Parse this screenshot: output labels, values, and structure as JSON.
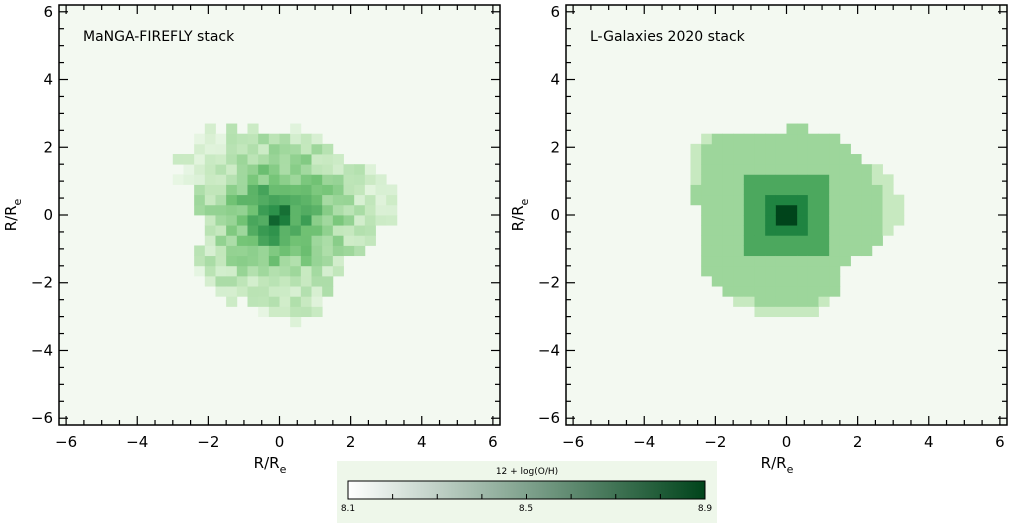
{
  "chart_data": [
    {
      "type": "heatmap",
      "title": "MaNGA-FIREFLY stack",
      "xlabel": "R/R",
      "xlabel_sub": "e",
      "ylabel": "R/R",
      "ylabel_sub": "e",
      "xlim": [
        -6.2,
        6.2
      ],
      "ylim": [
        -6.2,
        6.2
      ],
      "xticks": [
        -6,
        -4,
        -2,
        0,
        2,
        4,
        6
      ],
      "yticks": [
        -6,
        -4,
        -2,
        0,
        2,
        4,
        6
      ],
      "tick_labels": [
        "−6",
        "−4",
        "−2",
        "0",
        "2",
        "4",
        "6"
      ],
      "grid": false,
      "background": "#f3f9f1",
      "map": {
        "cell_size": 0.3,
        "center_value": 8.9,
        "edge_value": 8.25,
        "noisy": true,
        "extent_radius": 2.8
      }
    },
    {
      "type": "heatmap",
      "title": "L-Galaxies 2020 stack",
      "xlabel": "R/R",
      "xlabel_sub": "e",
      "ylabel": "R/R",
      "ylabel_sub": "e",
      "xlim": [
        -6.2,
        6.2
      ],
      "ylim": [
        -6.2,
        6.2
      ],
      "xticks": [
        -6,
        -4,
        -2,
        0,
        2,
        4,
        6
      ],
      "yticks": [
        -6,
        -4,
        -2,
        0,
        2,
        4,
        6
      ],
      "tick_labels": [
        "−6",
        "−4",
        "−2",
        "0",
        "2",
        "4",
        "6"
      ],
      "grid": false,
      "background": "#f3f9f1",
      "map": {
        "cell_size": 0.3,
        "levels": [
          {
            "r_max": 0.3,
            "value": 8.9
          },
          {
            "r_max": 0.7,
            "value": 8.72
          },
          {
            "r_max": 1.3,
            "value": 8.6
          },
          {
            "r_max": 2.6,
            "value": 8.4
          },
          {
            "r_max": 3.0,
            "value": 8.3
          }
        ],
        "noisy": false,
        "extent_radius": 2.8
      }
    }
  ],
  "colorbar": {
    "title": "12 + log(O/H)",
    "min": 8.1,
    "max": 8.9,
    "tick_labels": [
      "8.1",
      "8.5",
      "8.9"
    ],
    "tick_values": [
      8.1,
      8.5,
      8.9
    ],
    "color_low": "#ffffff",
    "color_high": "#00441b"
  }
}
